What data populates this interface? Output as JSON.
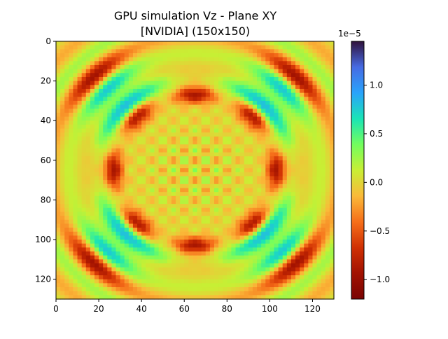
{
  "chart_data": {
    "type": "heatmap",
    "title": "GPU simulation Vz - Plane XY",
    "subtitle": "[NVIDIA] (150x150)",
    "xlabel": "",
    "ylabel": "",
    "xlim": [
      0,
      130
    ],
    "ylim": [
      130,
      0
    ],
    "x_ticks": [
      "0",
      "20",
      "40",
      "60",
      "80",
      "100",
      "120"
    ],
    "y_ticks": [
      "0",
      "20",
      "40",
      "60",
      "80",
      "100",
      "120"
    ],
    "grid": false,
    "colormap": "turbo",
    "colorbar": {
      "range": [
        -1.2e-05,
        1.45e-05
      ],
      "offset_label": "1e−5",
      "ticks": [
        {
          "value": 1.0,
          "label": "1.0"
        },
        {
          "value": 0.5,
          "label": "0.5"
        },
        {
          "value": 0.0,
          "label": "0.0"
        },
        {
          "value": -0.5,
          "label": "−0.5"
        },
        {
          "value": -1.0,
          "label": "−1.0"
        }
      ]
    },
    "field_description": "symmetric wave interference pattern of Vz over a 130x130 grid, centered at (65,65)"
  }
}
